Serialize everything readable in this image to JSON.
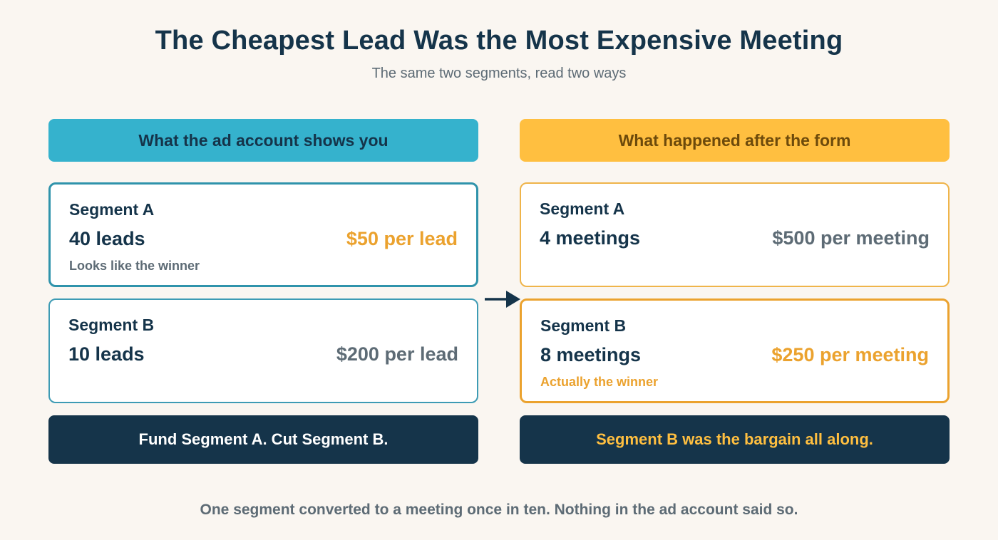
{
  "title": "The Cheapest Lead Was the Most Expensive Meeting",
  "subtitle": "The same two segments, read two ways",
  "left_column": {
    "header": "What the ad account shows you",
    "cards": [
      {
        "segment": "Segment A",
        "metric": "40 leads",
        "cost": "$50 per lead",
        "note": "Looks like the winner"
      },
      {
        "segment": "Segment B",
        "metric": "10 leads",
        "cost": "$200 per lead",
        "note": ""
      }
    ],
    "footer": "Fund Segment A. Cut Segment B."
  },
  "right_column": {
    "header": "What happened after the form",
    "cards": [
      {
        "segment": "Segment A",
        "metric": "4 meetings",
        "cost": "$500 per meeting",
        "note": ""
      },
      {
        "segment": "Segment B",
        "metric": "8 meetings",
        "cost": "$250 per meeting",
        "note": "Actually the winner"
      }
    ],
    "footer": "Segment B was the bargain all along."
  },
  "caption": "One segment converted to a meeting once in ten. Nothing in the ad account said so.",
  "colors": {
    "background": "#faf6f1",
    "navy": "#15344a",
    "teal": "#35b2cd",
    "amber": "#ffbf40",
    "orange": "#eba22e",
    "gray": "#5d6b75"
  },
  "icons": {
    "arrow": "arrow-right-icon"
  }
}
